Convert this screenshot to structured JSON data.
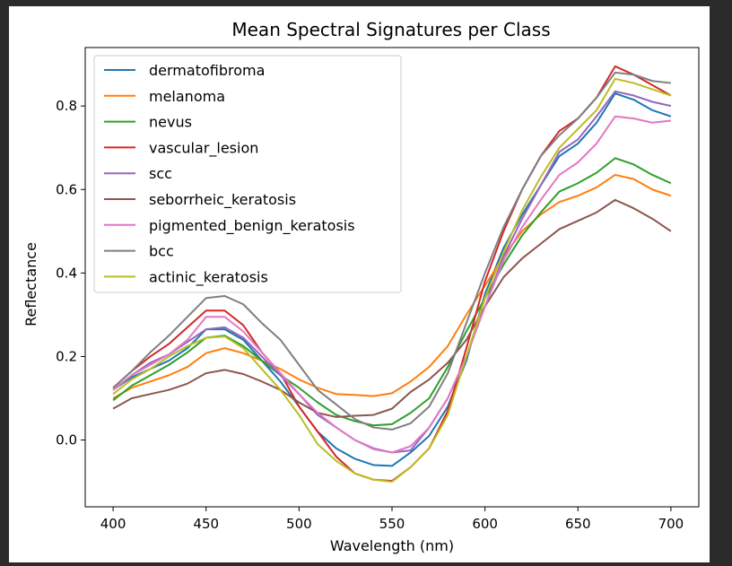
{
  "chart_data": {
    "type": "line",
    "title": "Mean Spectral Signatures per Class",
    "xlabel": "Wavelength (nm)",
    "ylabel": "Reflectance",
    "xlim": [
      385,
      715
    ],
    "ylim": [
      -0.16,
      0.94
    ],
    "xticks": [
      400,
      450,
      500,
      550,
      600,
      650,
      700
    ],
    "yticks": [
      0.0,
      0.2,
      0.4,
      0.6,
      0.8
    ],
    "ytick_labels": [
      "0.0",
      "0.2",
      "0.4",
      "0.6",
      "0.8"
    ],
    "grid": false,
    "legend_position": "upper-left",
    "x": [
      400,
      410,
      420,
      430,
      440,
      450,
      460,
      470,
      480,
      490,
      500,
      510,
      520,
      530,
      540,
      550,
      560,
      570,
      580,
      590,
      600,
      610,
      620,
      630,
      640,
      650,
      660,
      670,
      680,
      690,
      700
    ],
    "series": [
      {
        "name": "dermatofibroma",
        "color": "#1f77b4",
        "values": [
          0.12,
          0.15,
          0.17,
          0.19,
          0.22,
          0.265,
          0.265,
          0.24,
          0.19,
          0.14,
          0.08,
          0.02,
          -0.02,
          -0.045,
          -0.06,
          -0.062,
          -0.03,
          0.01,
          0.08,
          0.19,
          0.35,
          0.46,
          0.54,
          0.61,
          0.68,
          0.71,
          0.76,
          0.83,
          0.815,
          0.79,
          0.775
        ]
      },
      {
        "name": "melanoma",
        "color": "#ff7f0e",
        "values": [
          0.1,
          0.125,
          0.14,
          0.155,
          0.175,
          0.208,
          0.22,
          0.208,
          0.19,
          0.17,
          0.145,
          0.125,
          0.11,
          0.108,
          0.105,
          0.112,
          0.14,
          0.175,
          0.225,
          0.3,
          0.37,
          0.44,
          0.5,
          0.54,
          0.57,
          0.585,
          0.605,
          0.635,
          0.625,
          0.6,
          0.585
        ]
      },
      {
        "name": "nevus",
        "color": "#2ca02c",
        "values": [
          0.095,
          0.13,
          0.155,
          0.18,
          0.21,
          0.245,
          0.25,
          0.225,
          0.19,
          0.155,
          0.125,
          0.09,
          0.06,
          0.045,
          0.035,
          0.038,
          0.065,
          0.1,
          0.175,
          0.26,
          0.34,
          0.42,
          0.49,
          0.545,
          0.595,
          0.615,
          0.64,
          0.675,
          0.66,
          0.635,
          0.615
        ]
      },
      {
        "name": "vascular_lesion",
        "color": "#d62728",
        "values": [
          0.125,
          0.165,
          0.2,
          0.23,
          0.27,
          0.31,
          0.31,
          0.275,
          0.21,
          0.16,
          0.08,
          0.02,
          -0.04,
          -0.08,
          -0.095,
          -0.098,
          -0.065,
          -0.02,
          0.07,
          0.22,
          0.38,
          0.5,
          0.6,
          0.68,
          0.74,
          0.77,
          0.82,
          0.895,
          0.875,
          0.85,
          0.825
        ]
      },
      {
        "name": "scc",
        "color": "#9467bd",
        "values": [
          0.12,
          0.155,
          0.185,
          0.205,
          0.235,
          0.265,
          0.27,
          0.245,
          0.2,
          0.155,
          0.11,
          0.06,
          0.03,
          0.0,
          -0.02,
          -0.03,
          -0.025,
          0.03,
          0.1,
          0.2,
          0.32,
          0.44,
          0.53,
          0.61,
          0.69,
          0.72,
          0.775,
          0.835,
          0.825,
          0.81,
          0.8
        ]
      },
      {
        "name": "seborrheic_keratosis",
        "color": "#8c564b",
        "values": [
          0.075,
          0.1,
          0.11,
          0.12,
          0.135,
          0.16,
          0.168,
          0.158,
          0.14,
          0.12,
          0.09,
          0.065,
          0.055,
          0.058,
          0.06,
          0.075,
          0.115,
          0.145,
          0.185,
          0.24,
          0.32,
          0.39,
          0.435,
          0.47,
          0.505,
          0.525,
          0.545,
          0.575,
          0.555,
          0.53,
          0.5
        ]
      },
      {
        "name": "pigmented_benign_keratosis",
        "color": "#e377c2",
        "values": [
          0.12,
          0.155,
          0.18,
          0.205,
          0.24,
          0.295,
          0.295,
          0.26,
          0.21,
          0.16,
          0.11,
          0.065,
          0.03,
          0.0,
          -0.022,
          -0.03,
          -0.015,
          0.03,
          0.1,
          0.2,
          0.32,
          0.43,
          0.51,
          0.575,
          0.635,
          0.665,
          0.71,
          0.775,
          0.77,
          0.76,
          0.765
        ]
      },
      {
        "name": "bcc",
        "color": "#7f7f7f",
        "values": [
          0.125,
          0.165,
          0.21,
          0.25,
          0.295,
          0.34,
          0.345,
          0.325,
          0.28,
          0.24,
          0.18,
          0.12,
          0.085,
          0.05,
          0.03,
          0.025,
          0.04,
          0.08,
          0.16,
          0.28,
          0.4,
          0.51,
          0.6,
          0.68,
          0.73,
          0.77,
          0.82,
          0.88,
          0.875,
          0.86,
          0.855
        ]
      },
      {
        "name": "actinic_keratosis",
        "color": "#bcbd22",
        "values": [
          0.11,
          0.145,
          0.17,
          0.2,
          0.225,
          0.245,
          0.248,
          0.22,
          0.17,
          0.12,
          0.06,
          -0.01,
          -0.05,
          -0.08,
          -0.095,
          -0.1,
          -0.065,
          -0.02,
          0.06,
          0.2,
          0.34,
          0.45,
          0.55,
          0.63,
          0.7,
          0.745,
          0.79,
          0.865,
          0.855,
          0.84,
          0.825
        ]
      }
    ]
  }
}
